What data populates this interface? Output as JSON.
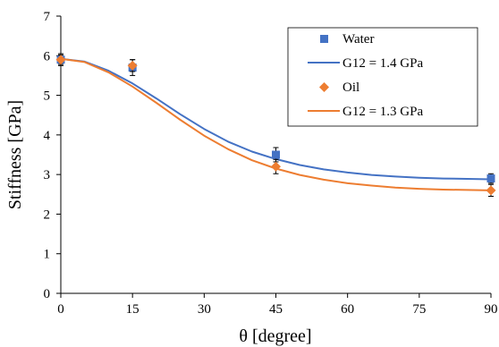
{
  "chart_data": {
    "type": "line",
    "xlabel": "θ [degree]",
    "ylabel": "Stiffness [GPa]",
    "xlim": [
      0,
      90
    ],
    "ylim": [
      0,
      7
    ],
    "xticks": [
      0,
      15,
      30,
      45,
      60,
      75,
      90
    ],
    "yticks": [
      0,
      1,
      2,
      3,
      4,
      5,
      6,
      7
    ],
    "grid": false,
    "legend_position": "top-right",
    "series": [
      {
        "name": "Water",
        "kind": "scatter",
        "marker": "square",
        "color": "#4472C4",
        "x": [
          0,
          15,
          45,
          90
        ],
        "y": [
          5.9,
          5.7,
          3.5,
          2.9
        ],
        "err": [
          0.15,
          0.2,
          0.18,
          0.12
        ]
      },
      {
        "name": "G12 = 1.4 GPa",
        "kind": "line",
        "color": "#4472C4",
        "x": [
          0,
          5,
          10,
          15,
          20,
          25,
          30,
          35,
          40,
          45,
          50,
          55,
          60,
          65,
          70,
          75,
          80,
          85,
          90
        ],
        "y": [
          5.92,
          5.85,
          5.62,
          5.3,
          4.92,
          4.52,
          4.15,
          3.83,
          3.58,
          3.39,
          3.24,
          3.13,
          3.05,
          2.99,
          2.95,
          2.92,
          2.9,
          2.89,
          2.88
        ]
      },
      {
        "name": "Oil",
        "kind": "scatter",
        "marker": "diamond",
        "color": "#ED7D31",
        "x": [
          0,
          15,
          45,
          90
        ],
        "y": [
          5.9,
          5.75,
          3.2,
          2.6
        ],
        "err": [
          0.12,
          0.15,
          0.18,
          0.15
        ]
      },
      {
        "name": "G12 = 1.3 GPa",
        "kind": "line",
        "color": "#ED7D31",
        "x": [
          0,
          5,
          10,
          15,
          20,
          25,
          30,
          35,
          40,
          45,
          50,
          55,
          60,
          65,
          70,
          75,
          80,
          85,
          90
        ],
        "y": [
          5.92,
          5.84,
          5.58,
          5.22,
          4.81,
          4.38,
          3.98,
          3.64,
          3.36,
          3.15,
          2.99,
          2.87,
          2.78,
          2.72,
          2.67,
          2.64,
          2.62,
          2.61,
          2.6
        ]
      }
    ]
  }
}
